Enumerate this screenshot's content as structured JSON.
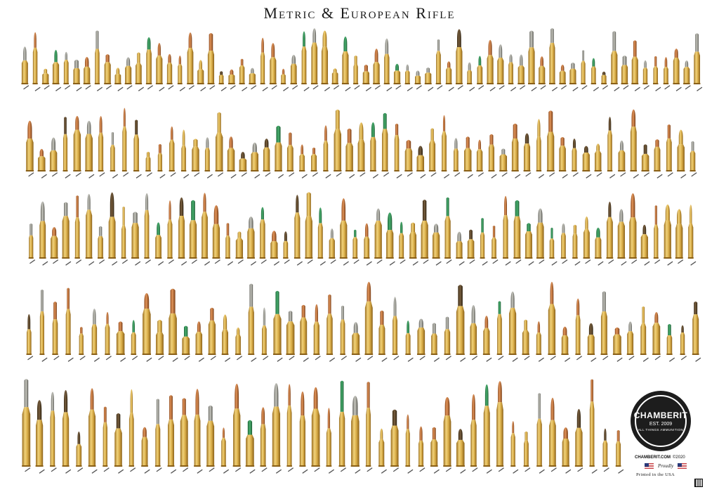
{
  "title": "Metric & European Rifle",
  "brand": {
    "name": "CHAMBERIT",
    "est": "EST. 2009",
    "tagline": "ALL THINGS AMMUNITION",
    "website": "CHAMBERIT.COM",
    "year": "©2020",
    "proudly": "Proudly",
    "printed": "Printed in the USA"
  },
  "colors": {
    "brass_light": "#e8c66a",
    "brass_dark": "#a87a22",
    "copper": "#c8733a",
    "lead": "#8e8e86",
    "steel": "#5a4a30"
  },
  "rows": [
    {
      "count": 66
    },
    {
      "count": 57
    },
    {
      "count": 58
    },
    {
      "count": 52
    },
    {
      "count": 46
    }
  ]
}
